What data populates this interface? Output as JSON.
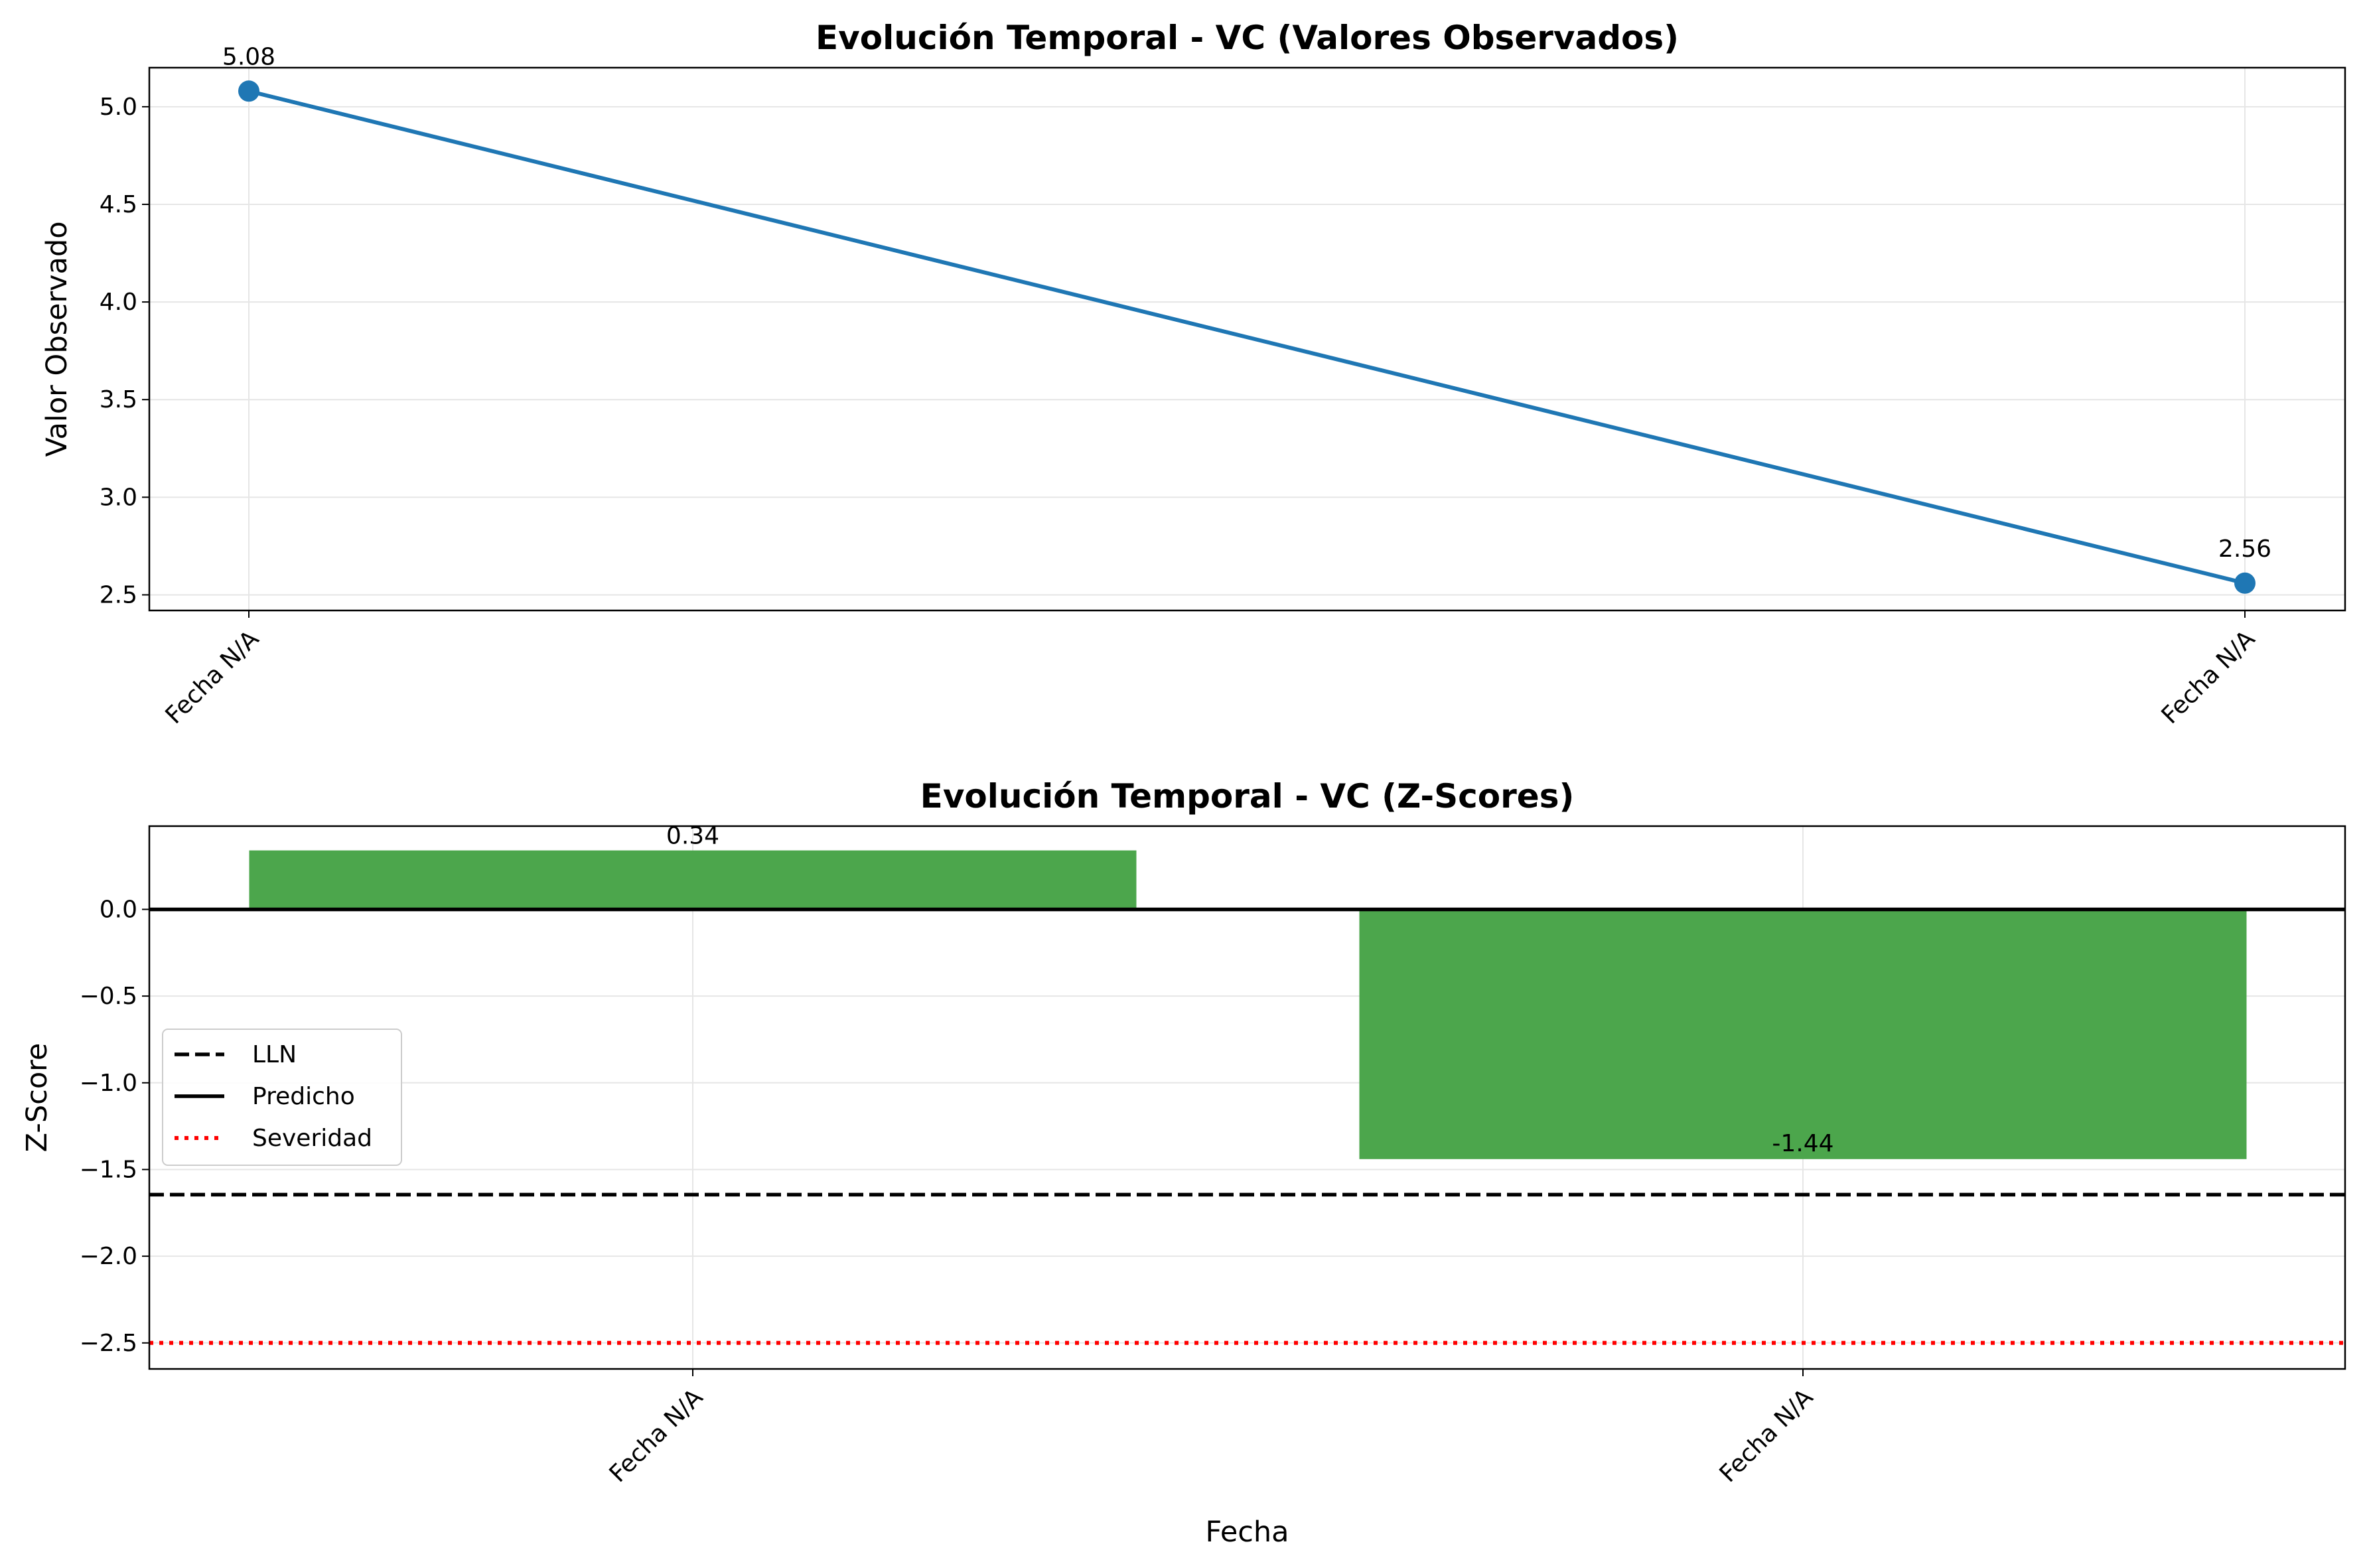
{
  "chart_data": [
    {
      "type": "line",
      "title": "Evolución Temporal - VC (Valores Observados)",
      "xlabel": "",
      "ylabel": "Valor Observado",
      "x_labels": [
        "Fecha N/A",
        "Fecha N/A"
      ],
      "values": [
        5.08,
        2.56
      ],
      "data_labels": [
        "5.08",
        "2.56"
      ],
      "ylim": [
        2.42,
        5.2
      ],
      "yticks": [
        2.5,
        3.0,
        3.5,
        4.0,
        4.5,
        5.0
      ],
      "ytick_labels": [
        "2.5",
        "3.0",
        "3.5",
        "4.0",
        "4.5",
        "5.0"
      ],
      "grid": true,
      "color": "#1f77b4"
    },
    {
      "type": "bar",
      "title": "Evolución Temporal - VC (Z-Scores)",
      "xlabel": "Fecha",
      "ylabel": "Z-Score",
      "categories": [
        "Fecha N/A",
        "Fecha N/A"
      ],
      "values": [
        0.34,
        -1.44
      ],
      "data_labels": [
        "0.34",
        "-1.44"
      ],
      "ylim": [
        -2.65,
        0.48
      ],
      "yticks": [
        -2.5,
        -2.0,
        -1.5,
        -1.0,
        -0.5,
        0.0
      ],
      "ytick_labels": [
        "−2.5",
        "−2.0",
        "−1.5",
        "−1.0",
        "−0.5",
        "0.0"
      ],
      "reference_lines": [
        {
          "name": "LLN",
          "value": -1.645,
          "style": "dashed",
          "color": "#000000"
        },
        {
          "name": "Predicho",
          "value": 0.0,
          "style": "solid",
          "color": "#000000"
        },
        {
          "name": "Severidad",
          "value": -2.5,
          "style": "dotted",
          "color": "#ff0000"
        }
      ],
      "legend_position": "center-left",
      "grid": true,
      "bar_color": "#4ca64c"
    }
  ]
}
